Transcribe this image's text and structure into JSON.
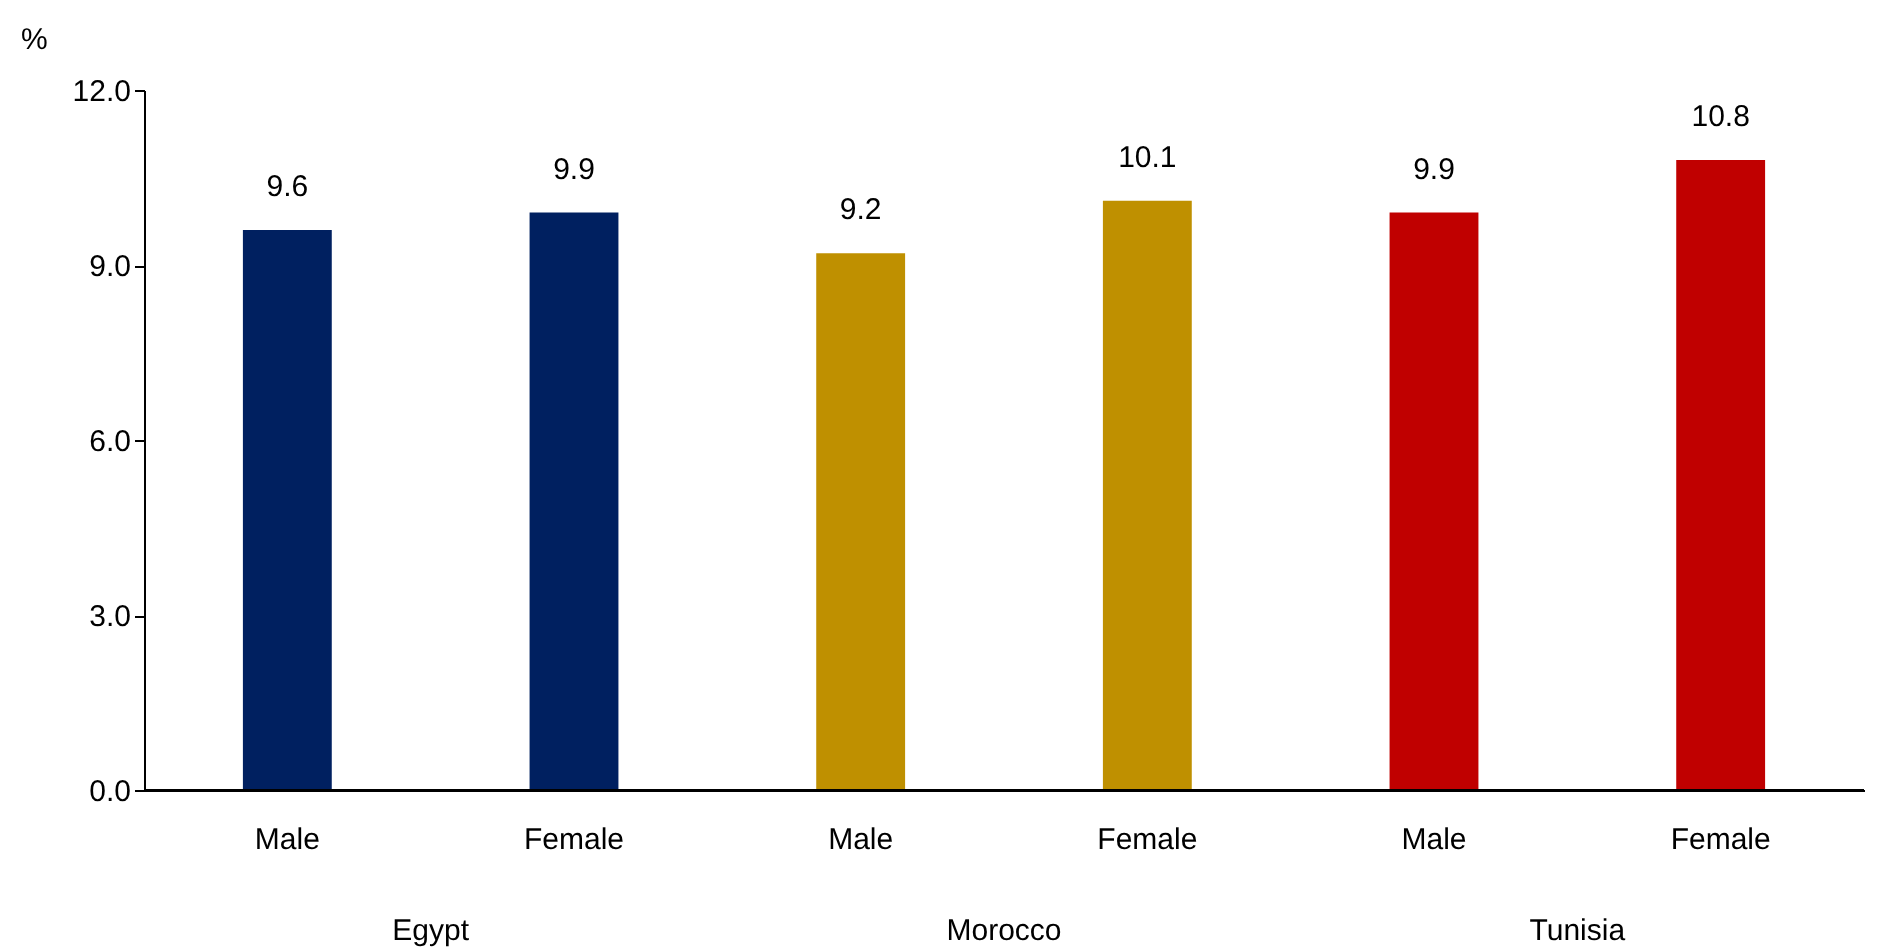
{
  "chart_data": {
    "type": "bar",
    "ylabel": "%",
    "categories": [
      "Male",
      "Female",
      "Male",
      "Female",
      "Male",
      "Female"
    ],
    "values": [
      9.6,
      9.9,
      9.2,
      10.1,
      9.9,
      10.8
    ],
    "colors": [
      "#002060",
      "#002060",
      "#bf9000",
      "#bf9000",
      "#c00000",
      "#c00000"
    ],
    "ylim": [
      0,
      12
    ],
    "yticks": [
      {
        "value": 0,
        "label": "0.0"
      },
      {
        "value": 3,
        "label": "3.0"
      },
      {
        "value": 6,
        "label": "6.0"
      },
      {
        "value": 9,
        "label": "9.0"
      },
      {
        "value": 12,
        "label": "12.0"
      }
    ],
    "data_labels": true,
    "grid": false,
    "annotations": [
      "Egypt",
      "Morocco",
      "Tunisia"
    ]
  }
}
